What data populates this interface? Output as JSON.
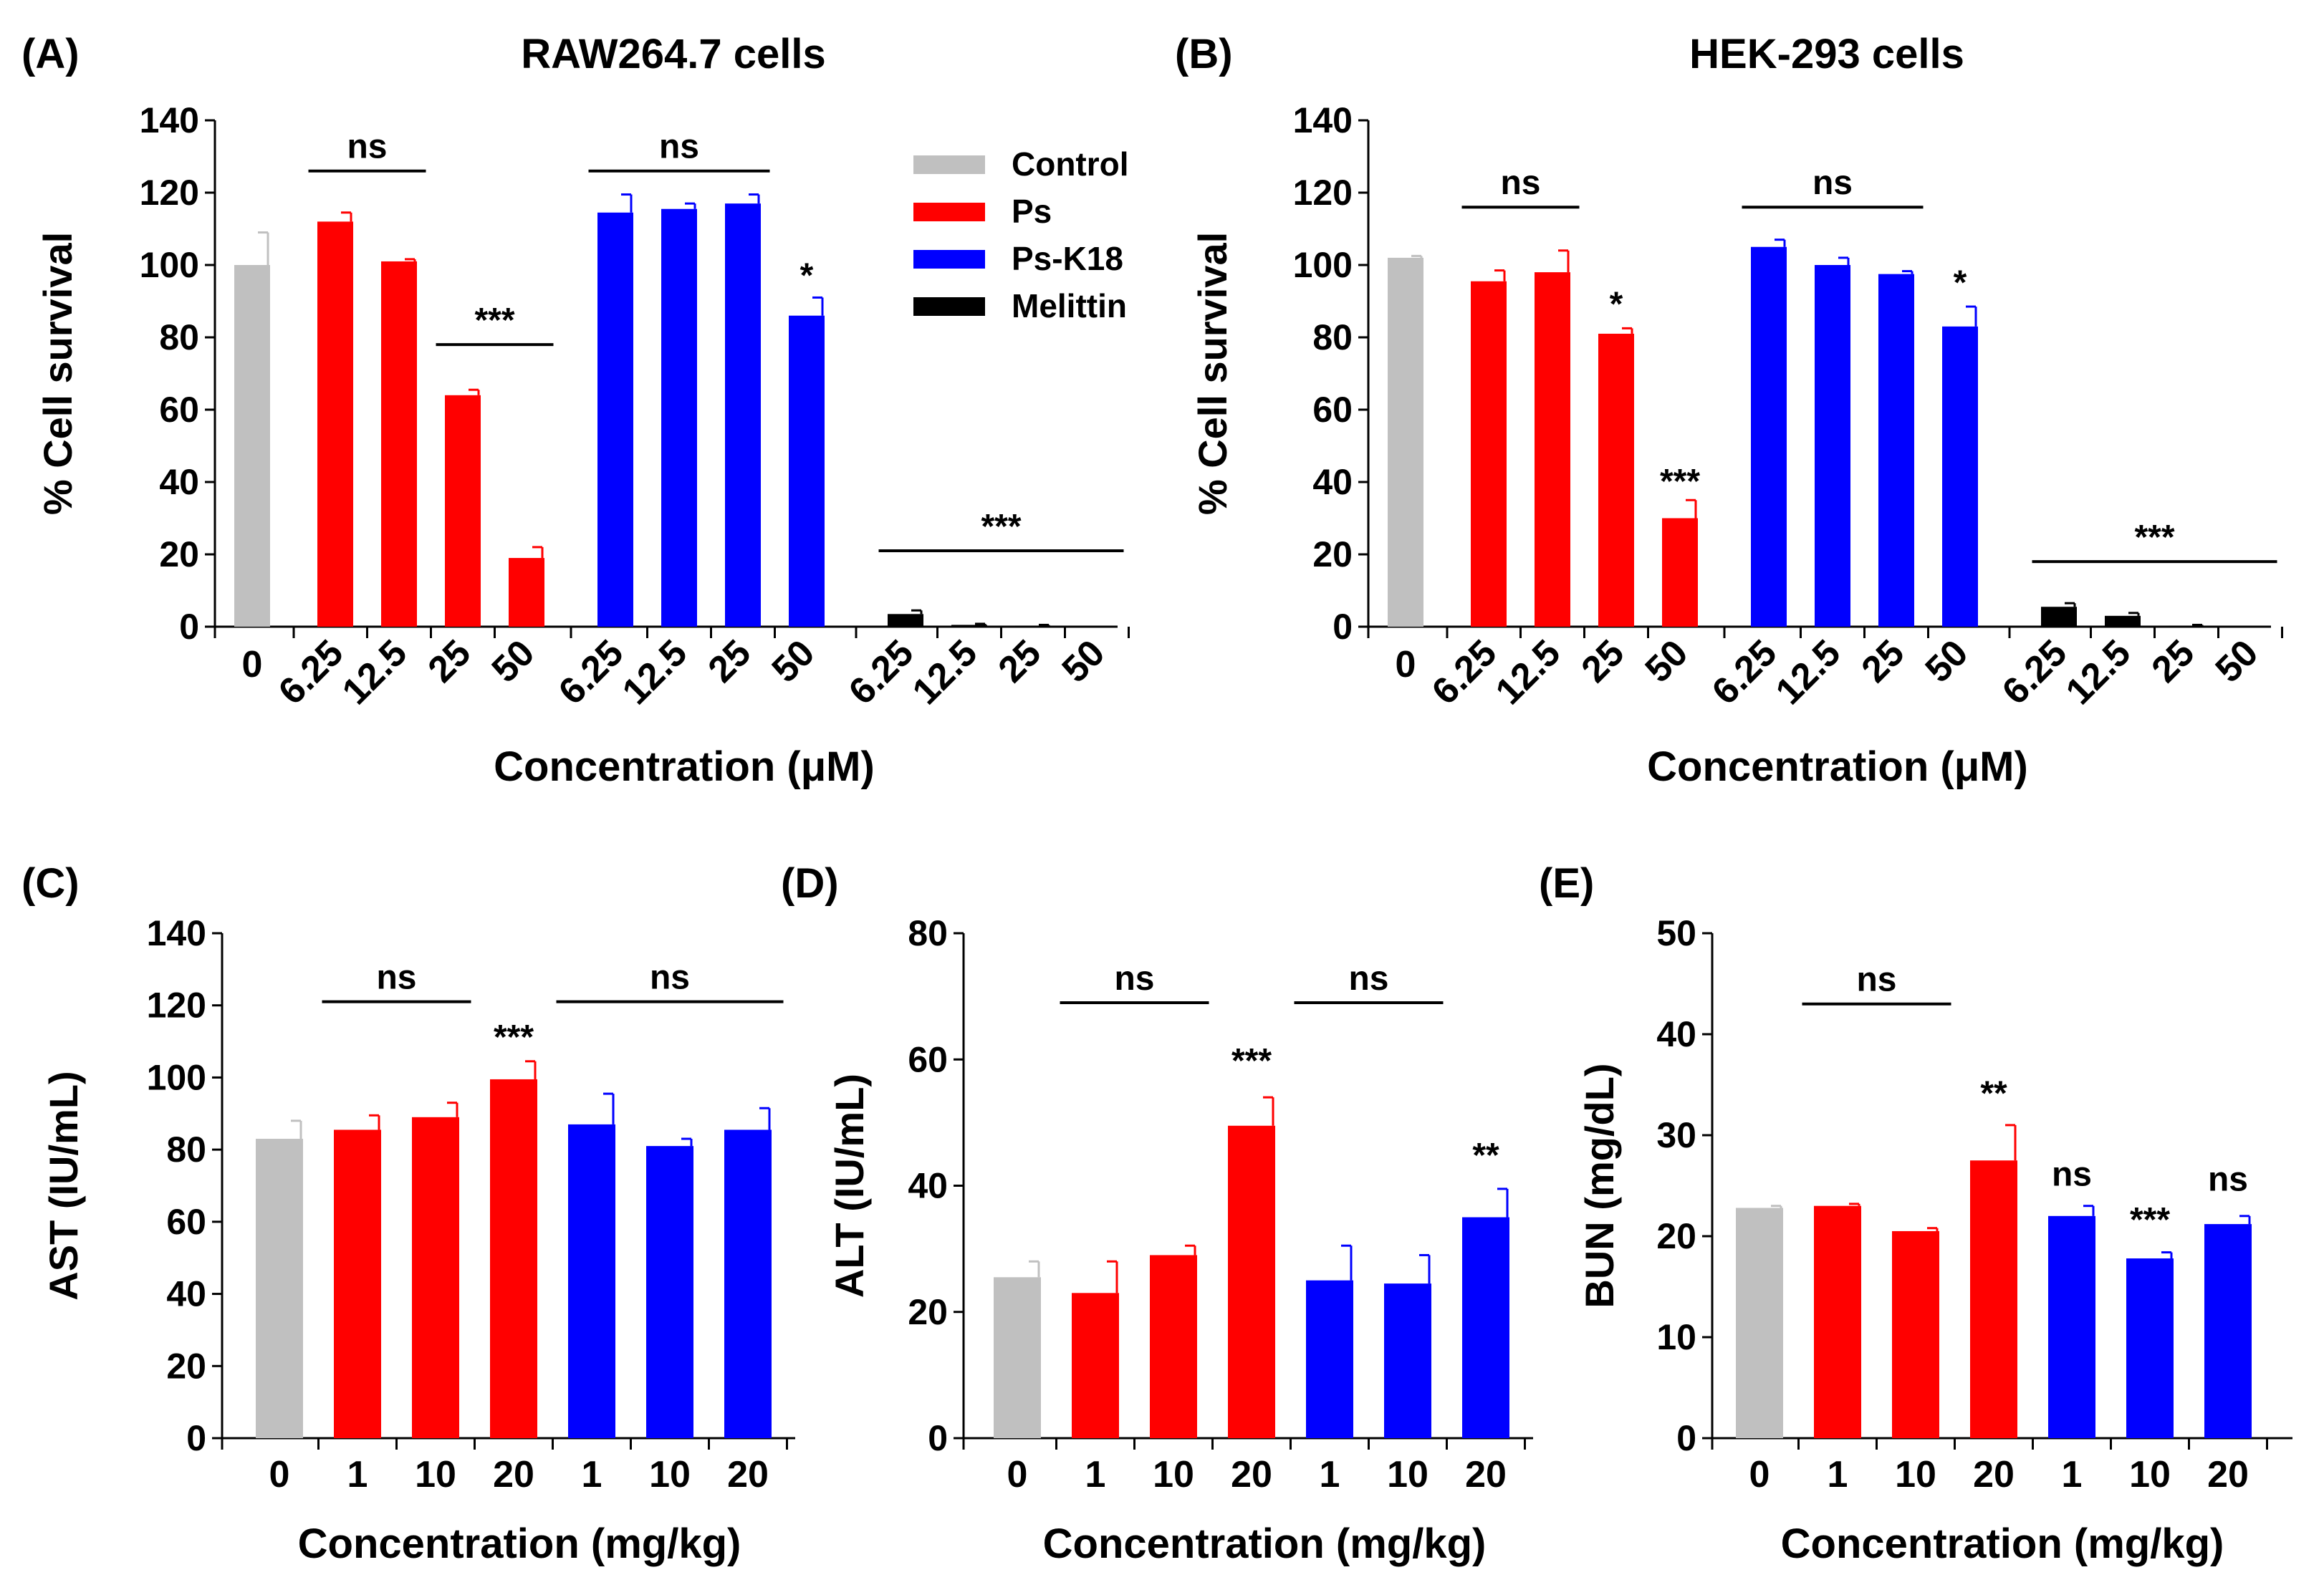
{
  "colors": {
    "Control": "#c0c0c0",
    "Ps": "#ff0000",
    "Ps-K18": "#0000ff",
    "Melittin": "#000000"
  },
  "legend": [
    "Control",
    "Ps",
    "Ps-K18",
    "Melittin"
  ],
  "chart_data": [
    {
      "id": "A",
      "type": "bar",
      "panel_label": "(A)",
      "title": "RAW264.7 cells",
      "xlabel": "Concentration (μM)",
      "ylabel": "% Cell survival",
      "ylim": [
        0,
        140
      ],
      "yticks": [
        0,
        20,
        40,
        60,
        80,
        100,
        120,
        140
      ],
      "categories": [
        "0",
        "6.25",
        "12.5",
        "25",
        "50",
        "6.25",
        "12.5",
        "25",
        "50",
        "6.25",
        "12.5",
        "25",
        "50"
      ],
      "groups": [
        "Control",
        "Ps",
        "Ps",
        "Ps",
        "Ps",
        "Ps-K18",
        "Ps-K18",
        "Ps-K18",
        "Ps-K18",
        "Melittin",
        "Melittin",
        "Melittin",
        "Melittin"
      ],
      "values": [
        100,
        112,
        101,
        64,
        19,
        114.5,
        115.5,
        117,
        86,
        3.5,
        0.5,
        0.3,
        0
      ],
      "errors": [
        9,
        2.5,
        0.6,
        1.5,
        3,
        5,
        1.5,
        2.5,
        5,
        1,
        0.3,
        0.2,
        0
      ],
      "significance": [
        {
          "text": "ns",
          "from": 1,
          "to": 2,
          "y": 126
        },
        {
          "text": "***",
          "from": 3,
          "to": 4,
          "y": 78
        },
        {
          "text": "ns",
          "from": 5,
          "to": 7,
          "y": 126
        },
        {
          "text": "*",
          "at": 8,
          "y": 94
        },
        {
          "text": "***",
          "from": 9,
          "to": 12,
          "y": 21
        }
      ]
    },
    {
      "id": "B",
      "type": "bar",
      "panel_label": "(B)",
      "title": "HEK-293 cells",
      "xlabel": "Concentration (μM)",
      "ylabel": "% Cell survival",
      "ylim": [
        0,
        140
      ],
      "yticks": [
        0,
        20,
        40,
        60,
        80,
        100,
        120,
        140
      ],
      "categories": [
        "0",
        "6.25",
        "12.5",
        "25",
        "50",
        "6.25",
        "12.5",
        "25",
        "50",
        "6.25",
        "12.5",
        "25",
        "50"
      ],
      "groups": [
        "Control",
        "Ps",
        "Ps",
        "Ps",
        "Ps",
        "Ps-K18",
        "Ps-K18",
        "Ps-K18",
        "Ps-K18",
        "Melittin",
        "Melittin",
        "Melittin",
        "Melittin"
      ],
      "values": [
        102,
        95.5,
        98,
        81,
        30,
        105,
        100,
        97.5,
        83,
        5.5,
        3,
        0.3,
        0
      ],
      "errors": [
        0.5,
        3,
        6,
        1.5,
        5,
        2,
        2,
        0.8,
        5.5,
        1,
        0.8,
        0.2,
        0
      ],
      "significance": [
        {
          "text": "ns",
          "from": 1,
          "to": 2,
          "y": 116
        },
        {
          "text": "*",
          "at": 3,
          "y": 86
        },
        {
          "text": "***",
          "at": 4,
          "y": 37
        },
        {
          "text": "ns",
          "from": 5,
          "to": 7,
          "y": 116
        },
        {
          "text": "*",
          "at": 8,
          "y": 92
        },
        {
          "text": "***",
          "from": 9,
          "to": 12,
          "y": 18
        }
      ]
    },
    {
      "id": "C",
      "type": "bar",
      "panel_label": "(C)",
      "title": "",
      "xlabel": "Concentration (mg/kg)",
      "ylabel": "AST (IU/mL)",
      "ylim": [
        0,
        140
      ],
      "yticks": [
        0,
        20,
        40,
        60,
        80,
        100,
        120,
        140
      ],
      "categories": [
        "0",
        "1",
        "10",
        "20",
        "1",
        "10",
        "20"
      ],
      "groups": [
        "Control",
        "Ps",
        "Ps",
        "Ps",
        "Ps-K18",
        "Ps-K18",
        "Ps-K18"
      ],
      "values": [
        83,
        85.5,
        89,
        99.5,
        87,
        81,
        85.5
      ],
      "errors": [
        5,
        4,
        4,
        5,
        8.5,
        2,
        6
      ],
      "significance": [
        {
          "text": "ns",
          "from": 1,
          "to": 2,
          "y": 121
        },
        {
          "text": "***",
          "at": 3,
          "y": 108
        },
        {
          "text": "ns",
          "from": 4,
          "to": 6,
          "y": 121
        }
      ]
    },
    {
      "id": "D",
      "type": "bar",
      "panel_label": "(D)",
      "title": "",
      "xlabel": "Concentration (mg/kg)",
      "ylabel": "ALT (IU/mL)",
      "ylim": [
        0,
        80
      ],
      "yticks": [
        0,
        20,
        40,
        60,
        80
      ],
      "categories": [
        "0",
        "1",
        "10",
        "20",
        "1",
        "10",
        "20"
      ],
      "groups": [
        "Control",
        "Ps",
        "Ps",
        "Ps",
        "Ps-K18",
        "Ps-K18",
        "Ps-K18"
      ],
      "values": [
        25.5,
        23,
        29,
        49.5,
        25,
        24.5,
        35
      ],
      "errors": [
        2.5,
        5,
        1.5,
        4.5,
        5.5,
        4.5,
        4.5
      ],
      "significance": [
        {
          "text": "ns",
          "from": 1,
          "to": 2,
          "y": 69
        },
        {
          "text": "***",
          "at": 3,
          "y": 58
        },
        {
          "text": "ns",
          "from": 4,
          "to": 5,
          "y": 69
        },
        {
          "text": "**",
          "at": 6,
          "y": 43
        }
      ]
    },
    {
      "id": "E",
      "type": "bar",
      "panel_label": "(E)",
      "title": "",
      "xlabel": "Concentration (mg/kg)",
      "ylabel": "BUN (mg/dL)",
      "ylim": [
        0,
        50
      ],
      "yticks": [
        0,
        10,
        20,
        30,
        40,
        50
      ],
      "categories": [
        "0",
        "1",
        "10",
        "20",
        "1",
        "10",
        "20"
      ],
      "groups": [
        "Control",
        "Ps",
        "Ps",
        "Ps",
        "Ps-K18",
        "Ps-K18",
        "Ps-K18"
      ],
      "values": [
        22.8,
        23,
        20.5,
        27.5,
        22,
        17.8,
        21.2
      ],
      "errors": [
        0.2,
        0.2,
        0.3,
        3.5,
        1,
        0.6,
        0.8
      ],
      "significance": [
        {
          "text": "ns",
          "from": 1,
          "to": 2,
          "y": 43
        },
        {
          "text": "**",
          "at": 3,
          "y": 33
        },
        {
          "text": "ns",
          "at": 4,
          "y": 25
        },
        {
          "text": "***",
          "at": 5,
          "y": 20.5
        },
        {
          "text": "ns",
          "at": 6,
          "y": 24.5
        }
      ]
    }
  ]
}
